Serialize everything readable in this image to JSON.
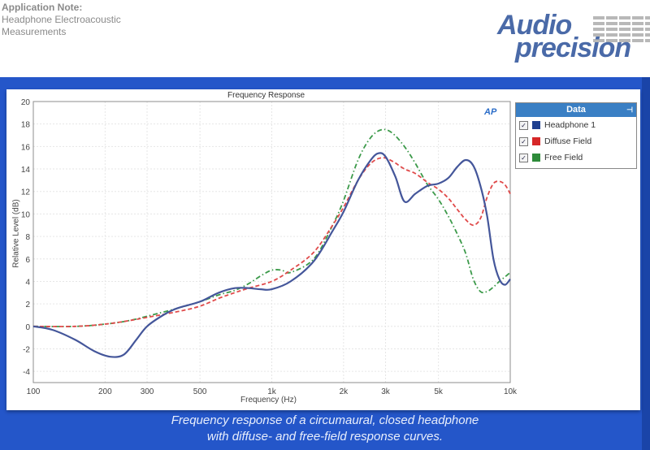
{
  "header": {
    "title": "Application Note:",
    "subtitle_line1": "Headphone Electroacoustic",
    "subtitle_line2": "Measurements"
  },
  "logo": {
    "line1": "Audio",
    "line2": "precision"
  },
  "badge": "AP",
  "caption": {
    "line1": "Frequency response of a circumaural, closed headphone",
    "line2": "with diffuse- and free-field response curves."
  },
  "legend": {
    "title": "Data",
    "items": [
      {
        "label": "Headphone 1",
        "color": "#1f3f8f",
        "checked": true
      },
      {
        "label": "Diffuse Field",
        "color": "#d62728",
        "checked": true
      },
      {
        "label": "Free Field",
        "color": "#2e8b3a",
        "checked": true
      }
    ]
  },
  "colors": {
    "band": "#2456c9",
    "legend_header": "#3a7fc4"
  },
  "chart_data": {
    "type": "line",
    "title": "Frequency Response",
    "xlabel": "Frequency (Hz)",
    "ylabel": "Relative Level (dB)",
    "xscale": "log",
    "xlim": [
      100,
      10000
    ],
    "ylim": [
      -5,
      20
    ],
    "xticks": [
      100,
      200,
      300,
      500,
      1000,
      2000,
      3000,
      5000,
      10000
    ],
    "xtick_labels": [
      "100",
      "200",
      "300",
      "500",
      "1k",
      "2k",
      "3k",
      "5k",
      "10k"
    ],
    "yticks": [
      -4,
      -2,
      0,
      2,
      4,
      6,
      8,
      10,
      12,
      14,
      16,
      18,
      20
    ],
    "grid": true,
    "legend_position": "right",
    "series": [
      {
        "name": "Headphone 1",
        "style": "solid",
        "color": "#44569a",
        "x": [
          100,
          120,
          150,
          180,
          210,
          240,
          270,
          300,
          350,
          400,
          500,
          600,
          700,
          800,
          900,
          1000,
          1200,
          1500,
          1800,
          2000,
          2300,
          2600,
          2800,
          3000,
          3300,
          3600,
          4000,
          4500,
          5000,
          5500,
          6000,
          6500,
          7000,
          7500,
          8000,
          8500,
          9000,
          9500,
          10000
        ],
        "y": [
          0,
          -0.3,
          -1.2,
          -2.2,
          -2.7,
          -2.5,
          -1.2,
          0,
          1,
          1.6,
          2.2,
          3.0,
          3.4,
          3.4,
          3.3,
          3.3,
          4.0,
          5.8,
          8.5,
          10.2,
          13.0,
          14.8,
          15.4,
          15.1,
          13.3,
          11.1,
          11.8,
          12.5,
          12.7,
          13.2,
          14.2,
          14.8,
          14.3,
          12.5,
          9.8,
          6.0,
          4.2,
          3.7,
          4.2
        ]
      },
      {
        "name": "Diffuse Field",
        "style": "dashed",
        "color": "#e04a4a",
        "x": [
          100,
          150,
          200,
          250,
          300,
          400,
          500,
          600,
          700,
          800,
          1000,
          1200,
          1500,
          1800,
          2000,
          2300,
          2600,
          2900,
          3200,
          3600,
          4000,
          4500,
          5000,
          5500,
          6000,
          6500,
          7000,
          7500,
          8000,
          8500,
          9000,
          9500,
          10000
        ],
        "y": [
          0,
          0,
          0.2,
          0.5,
          0.8,
          1.3,
          1.8,
          2.5,
          3.0,
          3.4,
          4.0,
          5.0,
          6.6,
          9.0,
          10.6,
          13.0,
          14.5,
          15.0,
          14.7,
          14.0,
          13.6,
          12.8,
          12.2,
          11.4,
          10.4,
          9.5,
          9.0,
          9.6,
          11.5,
          12.7,
          12.9,
          12.6,
          11.8
        ]
      },
      {
        "name": "Free Field",
        "style": "dashdot",
        "color": "#3c9a4a",
        "x": [
          100,
          150,
          200,
          250,
          300,
          400,
          500,
          600,
          700,
          800,
          900,
          1000,
          1100,
          1200,
          1500,
          1800,
          2000,
          2300,
          2600,
          2900,
          3200,
          3600,
          4000,
          4500,
          5000,
          5500,
          6000,
          6500,
          7000,
          7500,
          8000,
          8500,
          9000,
          9500,
          10000
        ],
        "y": [
          0,
          0,
          0.2,
          0.5,
          0.9,
          1.6,
          2.2,
          2.8,
          3.2,
          3.8,
          4.5,
          5.0,
          5.0,
          4.8,
          6.0,
          9.0,
          11.2,
          14.8,
          16.8,
          17.5,
          17.2,
          16.0,
          14.5,
          12.6,
          11.3,
          9.8,
          8.2,
          6.5,
          4.2,
          3.1,
          3.1,
          3.5,
          4.0,
          4.4,
          4.8
        ]
      }
    ]
  }
}
